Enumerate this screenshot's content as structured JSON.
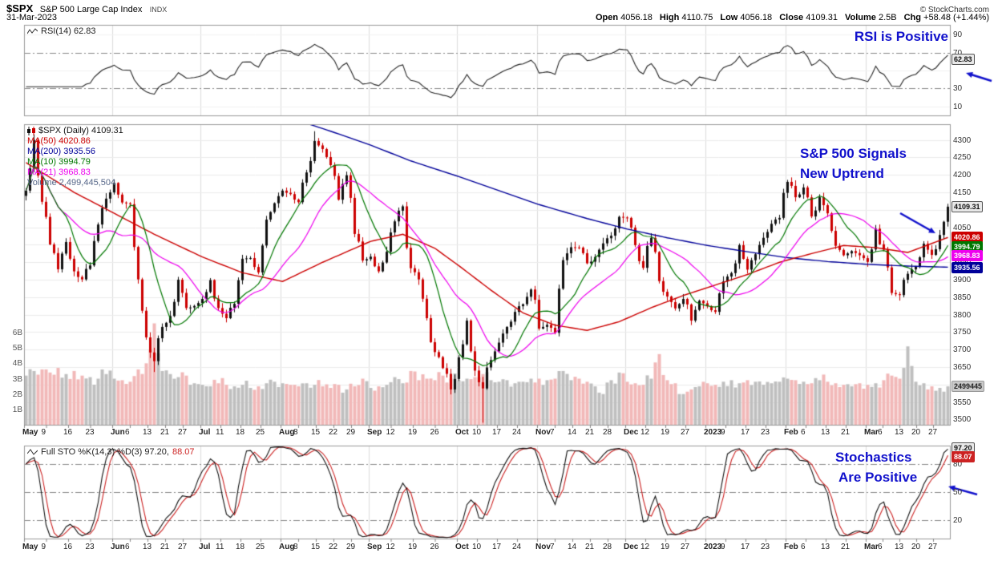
{
  "header": {
    "symbol": "$SPX",
    "name": "S&P 500 Large Cap Index",
    "exchange": "INDX",
    "date": "31-Mar-2023",
    "copyright": "© StockCharts.com",
    "quote": [
      [
        "Open",
        "4056.18"
      ],
      [
        "High",
        "4110.75"
      ],
      [
        "Low",
        "4056.18"
      ],
      [
        "Close",
        "4109.31"
      ],
      [
        "Volume",
        "2.5B"
      ],
      [
        "Chg",
        "+58.48 (+1.44%)"
      ]
    ]
  },
  "colors": {
    "annotation": "#1111cc",
    "up": "#111111",
    "down": "#cc0000",
    "ma50": "#cc0000",
    "ma200": "#000099",
    "ma10": "#007700",
    "ma21": "#ee00ee",
    "volume_up": "#bfbfbf",
    "volume_down": "#f2b8b8",
    "rsi_line": "#222222",
    "stoch_k": "#111111",
    "stoch_d": "#cc2222",
    "volume_legend": "#556688",
    "grid": "#ececec",
    "month_grid": "#dddddd",
    "panel_border": "#999999",
    "threshold": "#888888"
  },
  "rsi_panel": {
    "legend": "RSI(14) 62.83",
    "value": 62.83,
    "ticks": [
      "90",
      "70",
      "30",
      "10"
    ],
    "thresholds": [
      70,
      30
    ]
  },
  "main_panel": {
    "legend_items": [
      {
        "text": "$SPX (Daily) 4109.31",
        "color": "#111111",
        "icon": "candlestick-icon"
      },
      {
        "text": "MA(50) 4020.86",
        "color": "#cc0000"
      },
      {
        "text": "MA(200) 3935.56",
        "color": "#000099"
      },
      {
        "text": "MA(10) 3994.79",
        "color": "#007700"
      },
      {
        "text": "MA(21) 3968.83",
        "color": "#ee00ee"
      },
      {
        "text": "Volume 2,499,445,504",
        "color": "#556688"
      }
    ],
    "price_ticks": [
      4300,
      4250,
      4200,
      4150,
      4100,
      4050,
      4000,
      3950,
      3900,
      3850,
      3800,
      3750,
      3700,
      3650,
      3600,
      3550,
      3500
    ],
    "volume_ticks": [
      "6B",
      "5B",
      "4B",
      "3B",
      "2B",
      "1B"
    ]
  },
  "stoch_panel": {
    "legend_black": "Full STO %K(14,3) %D(3) 97.20,",
    "legend_red": "88.07",
    "k_value": 97.2,
    "d_value": 88.07,
    "ticks": [
      "80",
      "50",
      "20"
    ],
    "thresholds": [
      80,
      50,
      20
    ]
  },
  "annotations": {
    "rsi": "RSI is Positive",
    "main1": "S&P 500 Signals",
    "main2": "New Uptrend",
    "stoch1": "Stochastics",
    "stoch2": "Are Positive"
  },
  "tags": [
    {
      "panel": "rsi",
      "value": 62.83,
      "text": "62.83",
      "bg": "#e8e8e8",
      "fg": "#111111",
      "border": "#555555"
    },
    {
      "panel": "price",
      "value": 4109.31,
      "text": "4109.31",
      "bg": "#e8e8e8",
      "fg": "#111111",
      "border": "#555555"
    },
    {
      "panel": "price",
      "value": 4020.86,
      "text": "4020.86",
      "bg": "#cc0000",
      "fg": "#ffffff",
      "border": "#cc0000"
    },
    {
      "panel": "price",
      "value": 3994.79,
      "text": "3994.79",
      "bg": "#007700",
      "fg": "#ffffff",
      "border": "#007700"
    },
    {
      "panel": "price",
      "value": 3968.83,
      "text": "3968.83",
      "bg": "#ee00ee",
      "fg": "#ffffff",
      "border": "#ee00ee"
    },
    {
      "panel": "price",
      "value": 3935.56,
      "text": "3935.56",
      "bg": "#000099",
      "fg": "#ffffff",
      "border": "#000099"
    },
    {
      "panel": "volume",
      "value": 2.5,
      "text": "2499445",
      "bg": "#c9c9c9",
      "fg": "#222222",
      "border": "#999999"
    },
    {
      "panel": "stoch",
      "value": 97.2,
      "text": "97.20",
      "bg": "#e8e8e8",
      "fg": "#111111",
      "border": "#555555"
    },
    {
      "panel": "stoch",
      "value": 88.07,
      "text": "88.07",
      "bg": "#cc2222",
      "fg": "#ffffff",
      "border": "#cc2222"
    }
  ],
  "x_axis": {
    "groups": [
      {
        "label": "May",
        "i": 0,
        "days": [
          "9",
          "16",
          "23"
        ]
      },
      {
        "label": "Jun",
        "i": 11,
        "days": [
          "6",
          "13",
          "21",
          "27"
        ]
      },
      {
        "label": "Jul",
        "i": 22,
        "days": [
          "11",
          "18",
          "25"
        ]
      },
      {
        "label": "Aug",
        "i": 32,
        "days": [
          "8",
          "15",
          "22",
          "29"
        ]
      },
      {
        "label": "Sep",
        "i": 43,
        "days": [
          "12",
          "19",
          "26"
        ]
      },
      {
        "label": "Oct",
        "i": 54,
        "days": [
          "10",
          "17",
          "24"
        ]
      },
      {
        "label": "Nov",
        "i": 64,
        "days": [
          "7",
          "14",
          "21",
          "28"
        ]
      },
      {
        "label": "Dec",
        "i": 75,
        "days": [
          "12",
          "19",
          "27"
        ]
      },
      {
        "label": "2023",
        "i": 85,
        "days": [
          "9",
          "17",
          "23"
        ]
      },
      {
        "label": "Feb",
        "i": 95,
        "days": [
          "6",
          "13",
          "21"
        ]
      },
      {
        "label": "Mar",
        "i": 105,
        "days": [
          "6",
          "13",
          "20",
          "27"
        ]
      }
    ]
  },
  "chart_data": {
    "type": "candlestick",
    "symbol": "$SPX",
    "title": "S&P 500 Large Cap Index, daily, May 2022 - 31 Mar 2023",
    "price_axis": {
      "min": 3500,
      "max": 4300,
      "tick_step": 50
    },
    "volume_axis_billions": {
      "min": 1,
      "max": 6
    },
    "sampling_note": "closes sampled approximately every 2 trading days from the plotted candles",
    "closes": [
      4155,
      4300,
      4123,
      4001,
      3930,
      4008,
      3924,
      3901,
      3941,
      4058,
      4132,
      4177,
      4121,
      4116,
      3901,
      3735,
      3667,
      3765,
      3796,
      3900,
      3819,
      3825,
      3845,
      3899,
      3819,
      3790,
      3831,
      3960,
      3962,
      3921,
      4072,
      4119,
      4155,
      4145,
      4122,
      4207,
      4297,
      4274,
      4228,
      4129,
      4199,
      4031,
      3955,
      3966,
      3924,
      3980,
      4067,
      4110,
      3933,
      3901,
      3790,
      3693,
      3647,
      3586,
      3678,
      3783,
      3640,
      3589,
      3670,
      3720,
      3765,
      3808,
      3830,
      3872,
      3760,
      3771,
      3748,
      3956,
      3993,
      3992,
      3947,
      3965,
      4004,
      4026,
      4080,
      4077,
      3999,
      3934,
      4020,
      3896,
      3852,
      3818,
      3845,
      3783,
      3840,
      3824,
      3808,
      3895,
      3919,
      3999,
      3929,
      3973,
      4020,
      4060,
      4077,
      4180,
      4136,
      4164,
      4081,
      4136,
      4090,
      3997,
      3970,
      3982,
      3970,
      3951,
      4046,
      3986,
      3862,
      3856,
      3917,
      3937,
      4003,
      3971,
      4028,
      4109
    ],
    "volumes_billions": [
      3.2,
      3.5,
      3.6,
      3.4,
      3.7,
      3.3,
      3.5,
      3.2,
      3.1,
      3.0,
      3.3,
      3.0,
      2.9,
      2.8,
      3.6,
      4.0,
      6.6,
      3.5,
      3.3,
      3.1,
      3.2,
      2.7,
      2.6,
      2.5,
      2.7,
      2.6,
      2.5,
      2.6,
      2.4,
      2.5,
      2.7,
      2.8,
      2.7,
      2.6,
      2.5,
      2.7,
      2.6,
      2.5,
      2.4,
      2.6,
      2.3,
      2.5,
      3.0,
      2.4,
      2.5,
      2.6,
      3.1,
      2.7,
      3.5,
      2.9,
      3.0,
      2.9,
      3.2,
      3.0,
      2.9,
      3.0,
      3.1,
      3.3,
      2.9,
      2.8,
      2.9,
      2.7,
      2.8,
      3.0,
      3.0,
      2.9,
      3.0,
      3.5,
      2.9,
      3.0,
      2.8,
      2.5,
      2.0,
      2.9,
      3.4,
      2.8,
      2.7,
      2.6,
      3.0,
      4.6,
      2.9,
      2.7,
      2.0,
      2.3,
      2.5,
      2.7,
      2.6,
      2.8,
      2.9,
      2.7,
      2.9,
      2.8,
      2.6,
      2.7,
      2.8,
      3.0,
      2.9,
      2.8,
      2.7,
      2.9,
      2.8,
      2.7,
      2.6,
      2.5,
      2.7,
      2.6,
      2.7,
      2.9,
      3.2,
      3.0,
      5.1,
      2.8,
      2.7,
      2.5,
      2.4,
      2.5
    ],
    "wick_extremes": {
      "lows": [
        {
          "i": 16,
          "low": 3636
        },
        {
          "i": 57,
          "low": 3491
        }
      ],
      "highs": [
        {
          "i": 36,
          "high": 4325
        }
      ]
    },
    "ma50_anchors": [
      [
        0,
        4235
      ],
      [
        6,
        4150
      ],
      [
        11,
        4090
      ],
      [
        16,
        4030
      ],
      [
        22,
        3965
      ],
      [
        27,
        3920
      ],
      [
        32,
        3895
      ],
      [
        37,
        3950
      ],
      [
        43,
        4010
      ],
      [
        47,
        4030
      ],
      [
        51,
        3990
      ],
      [
        54,
        3940
      ],
      [
        58,
        3870
      ],
      [
        62,
        3805
      ],
      [
        66,
        3770
      ],
      [
        70,
        3755
      ],
      [
        74,
        3780
      ],
      [
        78,
        3820
      ],
      [
        82,
        3855
      ],
      [
        86,
        3885
      ],
      [
        90,
        3915
      ],
      [
        94,
        3950
      ],
      [
        98,
        3975
      ],
      [
        102,
        3998
      ],
      [
        106,
        3992
      ],
      [
        110,
        3978
      ],
      [
        115,
        4021
      ]
    ],
    "ma200_anchors": [
      [
        0,
        4475
      ],
      [
        11,
        4455
      ],
      [
        22,
        4425
      ],
      [
        32,
        4370
      ],
      [
        38,
        4325
      ],
      [
        43,
        4285
      ],
      [
        48,
        4240
      ],
      [
        54,
        4195
      ],
      [
        59,
        4155
      ],
      [
        64,
        4115
      ],
      [
        70,
        4075
      ],
      [
        75,
        4045
      ],
      [
        80,
        4020
      ],
      [
        85,
        3998
      ],
      [
        90,
        3980
      ],
      [
        95,
        3963
      ],
      [
        100,
        3952
      ],
      [
        105,
        3944
      ],
      [
        110,
        3939
      ],
      [
        115,
        3936
      ]
    ],
    "indicators": "RSI(14), MA(10), MA(21), Full STO %K(14,3) %D(3) are computed from the close series; MA(50) and MA(200) follow the anchor polylines",
    "last": {
      "close": 4109.31,
      "rsi": 62.83,
      "ma50": 4020.86,
      "ma200": 3935.56,
      "ma10": 3994.79,
      "ma21": 3968.83,
      "volume": "2,499,445,504",
      "stoch_k": 97.2,
      "stoch_d": 88.07
    }
  }
}
